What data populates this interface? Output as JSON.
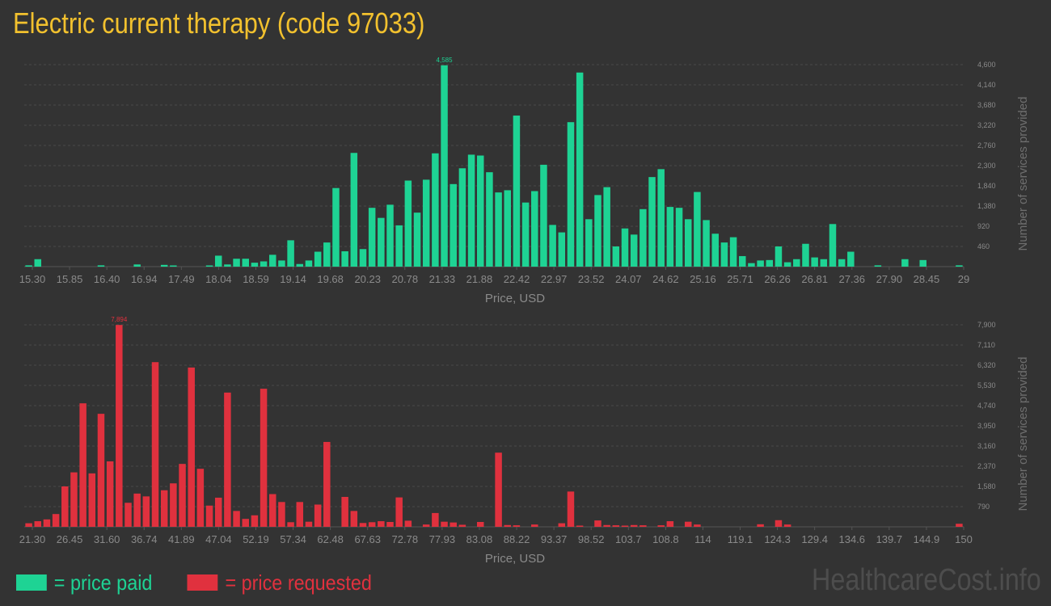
{
  "title": "Electric current therapy (code 97033)",
  "colors": {
    "paid": "#1ed394",
    "requested": "#e0313e",
    "title": "#f2c12e",
    "axis_text": "#8a8a8a",
    "grid": "#4a4a4a"
  },
  "legend": {
    "paid_label": "= price paid",
    "requested_label": "= price requested"
  },
  "watermark": "HealthcareCost.info",
  "chart_data": [
    {
      "type": "bar",
      "name": "paid",
      "xlabel": "Price, USD",
      "ylabel": "Number of services provided",
      "ylim": [
        0,
        4600
      ],
      "yticks": [
        "460",
        "920",
        "1,380",
        "1,840",
        "2,300",
        "2,760",
        "3,220",
        "3,680",
        "4,140",
        "4,600"
      ],
      "xtick_labels": [
        "15.30",
        "15.85",
        "16.40",
        "16.94",
        "17.49",
        "18.04",
        "18.59",
        "19.14",
        "19.68",
        "20.23",
        "20.78",
        "21.33",
        "21.88",
        "22.42",
        "22.97",
        "23.52",
        "24.07",
        "24.62",
        "25.16",
        "25.71",
        "26.26",
        "26.81",
        "27.36",
        "27.90",
        "28.45",
        "29"
      ],
      "max_label": "4,585",
      "values": [
        30,
        170,
        0,
        0,
        0,
        0,
        0,
        0,
        30,
        0,
        0,
        0,
        50,
        0,
        0,
        40,
        20,
        0,
        0,
        0,
        20,
        250,
        50,
        180,
        180,
        90,
        120,
        270,
        140,
        600,
        60,
        140,
        340,
        550,
        1790,
        350,
        2590,
        400,
        1340,
        1110,
        1410,
        940,
        1960,
        1230,
        1980,
        2580,
        4585,
        1880,
        2240,
        2550,
        2530,
        2150,
        1690,
        1740,
        3440,
        1460,
        1720,
        2320,
        950,
        780,
        3290,
        4420,
        1080,
        1630,
        1810,
        460,
        870,
        730,
        1310,
        2040,
        2220,
        1360,
        1340,
        1080,
        1700,
        1060,
        750,
        550,
        670,
        240,
        80,
        140,
        150,
        460,
        100,
        170,
        520,
        210,
        170,
        970,
        170,
        340,
        0,
        0,
        30,
        0,
        0,
        170,
        0,
        150,
        0,
        0,
        0,
        30
      ],
      "color": "#1ed394"
    },
    {
      "type": "bar",
      "name": "requested",
      "xlabel": "Price, USD",
      "ylabel": "Number of services provided",
      "ylim": [
        0,
        7900
      ],
      "yticks": [
        "790",
        "1,580",
        "2,370",
        "3,160",
        "3,950",
        "4,740",
        "5,530",
        "6,320",
        "7,110",
        "7,900"
      ],
      "xtick_labels": [
        "21.30",
        "26.45",
        "31.60",
        "36.74",
        "41.89",
        "47.04",
        "52.19",
        "57.34",
        "62.48",
        "67.63",
        "72.78",
        "77.93",
        "83.08",
        "88.22",
        "93.37",
        "98.52",
        "103.7",
        "108.8",
        "114",
        "119.1",
        "124.3",
        "129.4",
        "134.6",
        "139.7",
        "144.9",
        "150"
      ],
      "max_label": "7,894",
      "values": [
        140,
        220,
        290,
        500,
        1580,
        2130,
        4830,
        2090,
        4420,
        2560,
        7894,
        940,
        1300,
        1190,
        6440,
        1430,
        1700,
        2460,
        6230,
        2270,
        830,
        1140,
        5250,
        620,
        310,
        450,
        5400,
        1280,
        970,
        180,
        970,
        200,
        870,
        3320,
        0,
        1170,
        620,
        150,
        180,
        220,
        190,
        1150,
        240,
        0,
        90,
        540,
        200,
        170,
        80,
        0,
        190,
        0,
        2900,
        70,
        60,
        0,
        90,
        0,
        0,
        140,
        1380,
        40,
        0,
        250,
        70,
        60,
        40,
        70,
        60,
        0,
        60,
        220,
        0,
        200,
        90,
        0,
        0,
        0,
        0,
        0,
        0,
        100,
        0,
        260,
        90,
        0,
        0,
        0,
        0,
        0,
        0,
        0,
        0,
        0,
        0,
        0,
        0,
        0,
        0,
        0,
        0,
        0,
        0,
        120
      ],
      "color": "#e0313e"
    }
  ]
}
